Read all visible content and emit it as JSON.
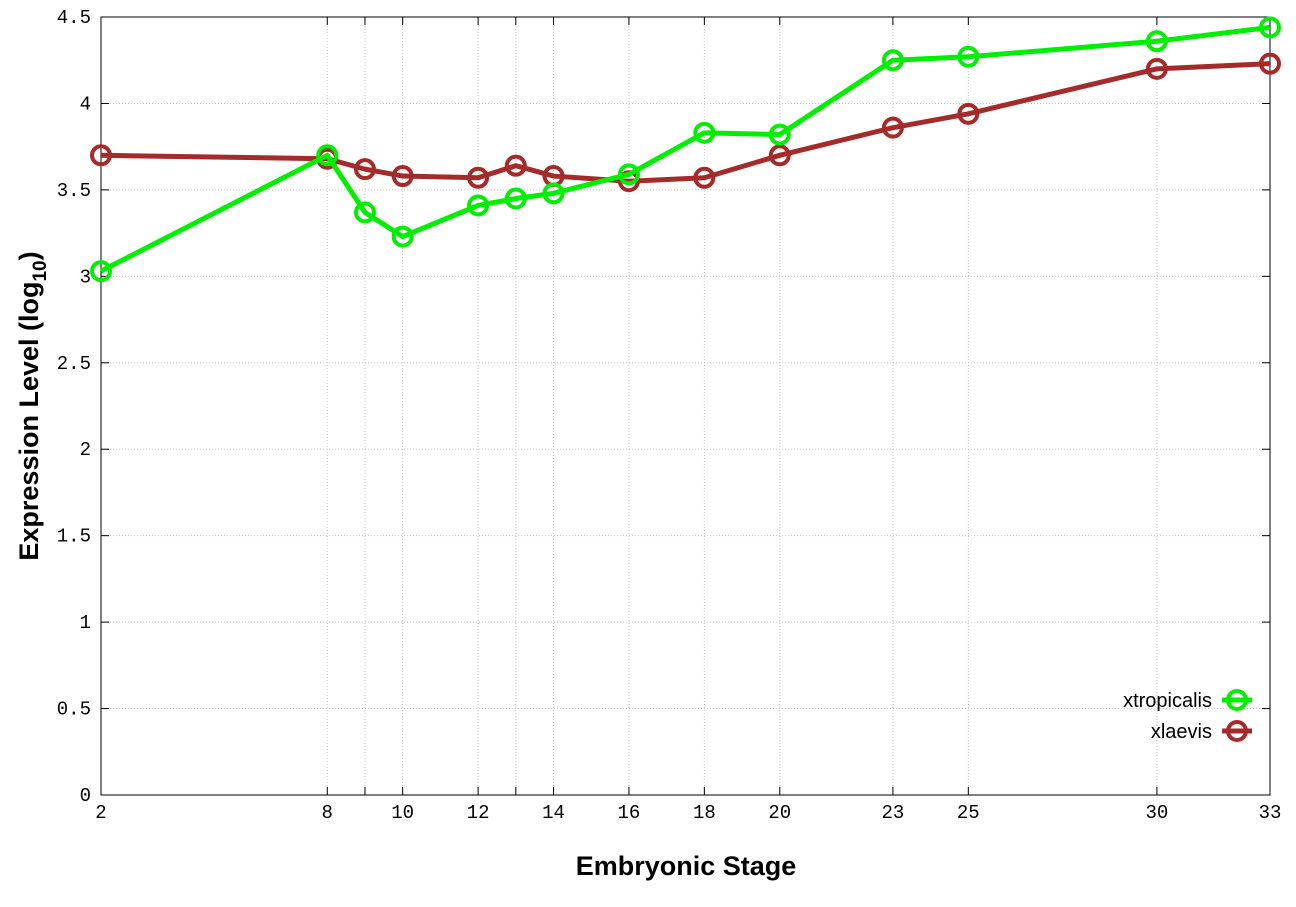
{
  "chart_data": {
    "type": "line",
    "title": "",
    "xlabel": "Embryonic Stage",
    "ylabel": "Expression Level (log",
    "ylabel_subscript": "10",
    "ylabel_suffix": ")",
    "x": [
      2,
      8,
      9,
      10,
      12,
      13,
      14,
      16,
      18,
      20,
      23,
      25,
      30,
      33
    ],
    "xticks": [
      2,
      8,
      10,
      12,
      14,
      16,
      18,
      20,
      23,
      25,
      30,
      33
    ],
    "xgrid": [
      2,
      8,
      9,
      10,
      12,
      13,
      14,
      16,
      18,
      20,
      23,
      25,
      30,
      33
    ],
    "xlim": [
      2,
      33
    ],
    "ylim": [
      0,
      4.5
    ],
    "yticks": [
      "0",
      "0.5",
      "1",
      "1.5",
      "2",
      "2.5",
      "3",
      "3.5",
      "4",
      "4.5"
    ],
    "grid": true,
    "legend_position": "bottom-right",
    "series": [
      {
        "name": "xtropicalis",
        "color": "#00ee00",
        "values": [
          3.03,
          3.7,
          3.37,
          3.23,
          3.41,
          3.45,
          3.48,
          3.59,
          3.83,
          3.82,
          4.25,
          4.27,
          4.36,
          4.44
        ]
      },
      {
        "name": "xlaevis",
        "color": "#a52a2a",
        "values": [
          3.7,
          3.68,
          3.62,
          3.58,
          3.57,
          3.64,
          3.58,
          3.55,
          3.57,
          3.7,
          3.86,
          3.94,
          4.2,
          4.23
        ]
      }
    ]
  }
}
